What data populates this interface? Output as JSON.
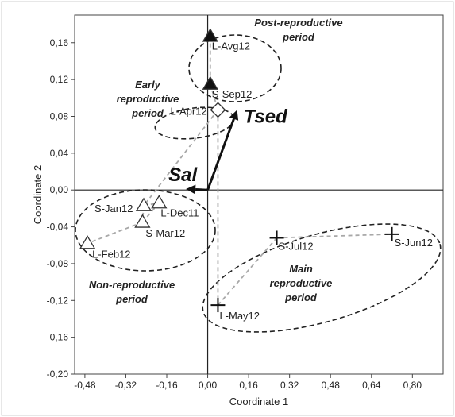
{
  "chart_data": {
    "type": "scatter",
    "xlabel": "Coordinate 1",
    "ylabel": "Coordinate 2",
    "xlim": [
      -0.52,
      0.92
    ],
    "ylim": [
      -0.2,
      0.19
    ],
    "xticks": [
      "-0,48",
      "-0,32",
      "-0,16",
      "0,00",
      "0,16",
      "0,32",
      "0,48",
      "0,64",
      "0,80"
    ],
    "yticks": [
      "0,16",
      "0,12",
      "0,08",
      "0,04",
      "0,00",
      "-0,04",
      "-0,08",
      "-0,12",
      "-0,16",
      "-0,20"
    ],
    "grid": false,
    "points": [
      {
        "label": "L-Avg12",
        "x": 0.01,
        "y": 0.167,
        "marker": "filled-triangle"
      },
      {
        "label": "S-Sep12",
        "x": 0.01,
        "y": 0.115,
        "marker": "filled-triangle"
      },
      {
        "label": "L-Apr12",
        "x": 0.04,
        "y": 0.087,
        "marker": "diamond"
      },
      {
        "label": "S-Jan12",
        "x": -0.25,
        "y": -0.017,
        "marker": "open-triangle"
      },
      {
        "label": "L-Dec11",
        "x": -0.19,
        "y": -0.014,
        "marker": "open-triangle"
      },
      {
        "label": "S-Mar12",
        "x": -0.255,
        "y": -0.035,
        "marker": "open-triangle"
      },
      {
        "label": "L-Feb12",
        "x": -0.47,
        "y": -0.058,
        "marker": "open-triangle"
      },
      {
        "label": "S-Jul12",
        "x": 0.27,
        "y": -0.052,
        "marker": "plus"
      },
      {
        "label": "S-Jun12",
        "x": 0.72,
        "y": -0.048,
        "marker": "plus"
      },
      {
        "label": "L-May12",
        "x": 0.04,
        "y": -0.125,
        "marker": "plus"
      }
    ],
    "vectors": [
      {
        "label": "Tsed",
        "x": 0.115,
        "y": 0.087
      },
      {
        "label": "Sal",
        "x": -0.085,
        "y": 0.001
      }
    ],
    "groups": [
      {
        "label_lines": [
          "Post-reproductive",
          "period"
        ]
      },
      {
        "label_lines": [
          "Early",
          "reproductive",
          "period"
        ]
      },
      {
        "label_lines": [
          "Non-reproductive",
          "period"
        ]
      },
      {
        "label_lines": [
          "Main",
          "reproductive",
          "period"
        ]
      }
    ]
  }
}
